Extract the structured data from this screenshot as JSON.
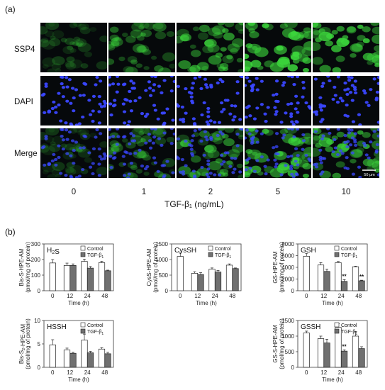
{
  "figure": {
    "panel_a_label": "(a)",
    "panel_b_label": "(b)",
    "row_labels": [
      "SSP4",
      "DAPI",
      "Merge"
    ],
    "concentrations": [
      "0",
      "1",
      "2",
      "5",
      "10"
    ],
    "x_title": "TGF-β₁ (ng/mL)",
    "scale_bar_label": "50 μm",
    "green_intensity": [
      0.25,
      0.45,
      0.65,
      0.95,
      0.85
    ],
    "colors": {
      "ssp4": "#3cd73c",
      "dapi": "#3a47ff",
      "background": "#06090b",
      "control_bar": "#ffffff",
      "tgf_bar": "#707070"
    }
  },
  "chart_data": [
    {
      "type": "bar",
      "name": "H2S",
      "panel_text": "H₂S",
      "ylabel_line1": "Bis-S-HPE-AM",
      "ylabel_line2": "(pmol/mg of protein)",
      "xlabel": "Time (h)",
      "categories": [
        "0",
        "12",
        "24",
        "48"
      ],
      "ylim": [
        0,
        300
      ],
      "yticks": [
        "0",
        "100",
        "200",
        "300"
      ],
      "legend": [
        "Control",
        "TGF-β₁"
      ],
      "legend_position": "top-right",
      "series": [
        {
          "name": "Control",
          "values": [
            178,
            162,
            188,
            180
          ],
          "errors": [
            22,
            15,
            15,
            8
          ]
        },
        {
          "name": "TGF-β₁",
          "values": [
            null,
            162,
            145,
            128
          ],
          "errors": [
            null,
            10,
            10,
            4
          ]
        }
      ],
      "annotations": []
    },
    {
      "type": "bar",
      "name": "CysSH",
      "panel_text": "CysSH",
      "ylabel_line1": "CysS-HPE-AM",
      "ylabel_line2": "(pmol/mg of protein)",
      "xlabel": "Time (h)",
      "categories": [
        "0",
        "12",
        "24",
        "48"
      ],
      "ylim": [
        0,
        1500
      ],
      "yticks": [
        "0",
        "500",
        "1000",
        "1500"
      ],
      "legend": [
        "Control",
        "TGF-β₁"
      ],
      "legend_position": "top-right",
      "series": [
        {
          "name": "Control",
          "values": [
            1100,
            560,
            690,
            820
          ],
          "errors": [
            110,
            50,
            40,
            40
          ]
        },
        {
          "name": "TGF-β₁",
          "values": [
            null,
            520,
            600,
            710
          ],
          "errors": [
            null,
            60,
            50,
            20
          ]
        }
      ],
      "annotations": []
    },
    {
      "type": "bar",
      "name": "GSH",
      "panel_text": "GSH",
      "ylabel_line1": "GS-HPE-AM",
      "ylabel_line2": "(pmol/mg of protein)",
      "xlabel": "Time (h)",
      "categories": [
        "0",
        "12",
        "24",
        "48"
      ],
      "ylim": [
        0,
        8000
      ],
      "yticks": [
        "0",
        "2000",
        "4000",
        "6000",
        "8000"
      ],
      "legend": [
        "Control",
        "TGF-β₁"
      ],
      "legend_position": "top-right",
      "series": [
        {
          "name": "Control",
          "values": [
            5900,
            4400,
            4800,
            4100
          ],
          "errors": [
            500,
            400,
            200,
            100
          ]
        },
        {
          "name": "TGF-β₁",
          "values": [
            null,
            3300,
            1600,
            1700
          ],
          "errors": [
            null,
            400,
            300,
            100
          ]
        }
      ],
      "annotations": [
        {
          "category": 2,
          "text": "**"
        },
        {
          "category": 3,
          "text": "**"
        }
      ]
    },
    {
      "type": "bar",
      "name": "HSSH",
      "panel_text": "HSSH",
      "ylabel_line1": "Bis-S₂-HPE-AM",
      "ylabel_line2": "(pmol/mg of protein)",
      "xlabel": "Time (h)",
      "categories": [
        "0",
        "12",
        "24",
        "48"
      ],
      "ylim": [
        0,
        10
      ],
      "yticks": [
        "0",
        "5",
        "10"
      ],
      "legend": [
        "Control",
        "TGF-β₁"
      ],
      "legend_position": "top-right",
      "series": [
        {
          "name": "Control",
          "values": [
            4.8,
            3.7,
            5.8,
            3.9
          ],
          "errors": [
            1.1,
            0.4,
            1.3,
            0.3
          ]
        },
        {
          "name": "TGF-β₁",
          "values": [
            null,
            3.0,
            3.1,
            2.9
          ],
          "errors": [
            null,
            0.2,
            0.3,
            0.3
          ]
        }
      ],
      "annotations": []
    },
    {
      "type": "bar",
      "name": "GSSH",
      "panel_text": "GSSH",
      "ylabel_line1": "GS-S-HPE-AM",
      "ylabel_line2": "(pmol/mg of protein)",
      "xlabel": "Time (h)",
      "categories": [
        "0",
        "12",
        "24",
        "48"
      ],
      "ylim": [
        0,
        1500
      ],
      "yticks": [
        "0",
        "500",
        "1000",
        "1500"
      ],
      "legend": [
        "Control",
        "TGF-β₁"
      ],
      "legend_position": "top-right",
      "series": [
        {
          "name": "Control",
          "values": [
            1100,
            920,
            1280,
            1000
          ],
          "errors": [
            60,
            80,
            120,
            150
          ]
        },
        {
          "name": "TGF-β₁",
          "values": [
            null,
            780,
            520,
            600
          ],
          "errors": [
            null,
            120,
            40,
            60
          ]
        }
      ],
      "annotations": [
        {
          "category": 2,
          "text": "**"
        }
      ]
    }
  ]
}
